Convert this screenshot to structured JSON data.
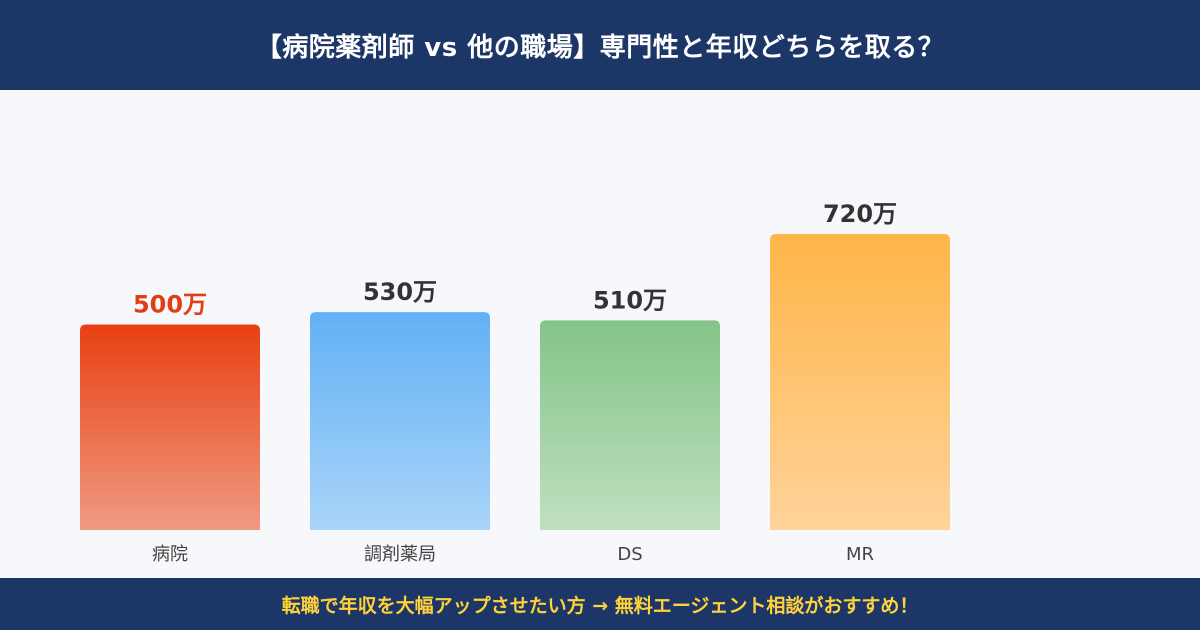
{
  "header": {
    "title": "【病院薬剤師 vs 他の職場】専門性と年収どちらを取る？"
  },
  "footer": {
    "cta": "転職で年収を大幅アップさせたい方 → 無料エージェント相談がおすすめ！"
  },
  "colors": {
    "header_bg": "#1c3767",
    "footer_text": "#ffd23a",
    "highlight_label": "#e23d14",
    "default_label": "#333333"
  },
  "chart_data": {
    "type": "bar",
    "title": "",
    "xlabel": "",
    "ylabel": "",
    "unit": "万",
    "categories": [
      "病院",
      "調剤薬局",
      "DS",
      "MR"
    ],
    "values": [
      500,
      530,
      510,
      720
    ],
    "value_labels": [
      "500万",
      "530万",
      "510万",
      "720万"
    ],
    "highlighted_index": 0,
    "bar_colors": [
      {
        "top": "#e84012",
        "bottom": "#f09a82"
      },
      {
        "top": "#61b1f5",
        "bottom": "#aad4f8"
      },
      {
        "top": "#84c488",
        "bottom": "#bfe0bf"
      },
      {
        "top": "#ffb548",
        "bottom": "#ffd39a"
      }
    ],
    "ylim": [
      0,
      720
    ],
    "grid": false,
    "legend": "none"
  }
}
